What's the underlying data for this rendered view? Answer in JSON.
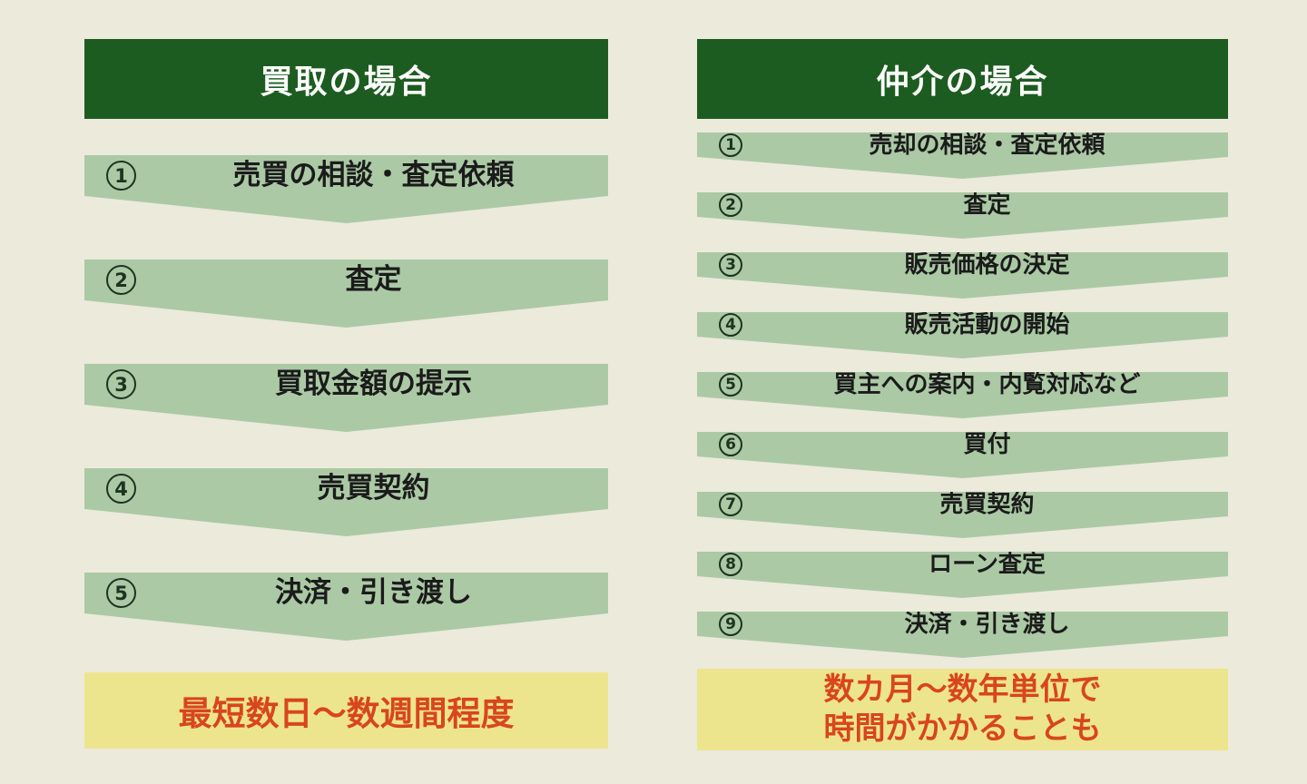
{
  "colors": {
    "background": "#ECEADB",
    "header_bg": "#1D5C20",
    "header_text": "#FFFFFF",
    "band_bg": "#ABC9A5",
    "band_text": "#1B1B1B",
    "badge_outline": "#1E3320",
    "summary_bg": "#EDE58D",
    "summary_text": "#D9451F"
  },
  "left_column": {
    "title": "買取の場合",
    "steps": [
      {
        "num": "1",
        "label": "売買の相談・査定依頼"
      },
      {
        "num": "2",
        "label": "査定"
      },
      {
        "num": "3",
        "label": "買取金額の提示"
      },
      {
        "num": "4",
        "label": "売買契約"
      },
      {
        "num": "5",
        "label": "決済・引き渡し"
      }
    ],
    "summary": "最短数日～数週間程度"
  },
  "right_column": {
    "title": "仲介の場合",
    "steps": [
      {
        "num": "1",
        "label": "売却の相談・査定依頼"
      },
      {
        "num": "2",
        "label": "査定"
      },
      {
        "num": "3",
        "label": "販売価格の決定"
      },
      {
        "num": "4",
        "label": "販売活動の開始"
      },
      {
        "num": "5",
        "label": "買主への案内・内覧対応など"
      },
      {
        "num": "6",
        "label": "買付"
      },
      {
        "num": "7",
        "label": "売買契約"
      },
      {
        "num": "8",
        "label": "ローン査定"
      },
      {
        "num": "9",
        "label": "決済・引き渡し"
      }
    ],
    "summary_line1": "数カ月～数年単位で",
    "summary_line2": "時間がかかることも"
  }
}
